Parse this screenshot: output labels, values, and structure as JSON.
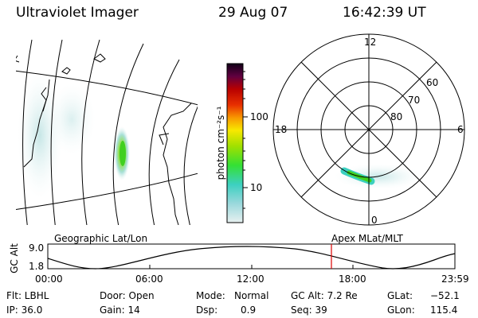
{
  "header": {
    "instrument": "Ultraviolet Imager",
    "date": "29 Aug 07",
    "time": "16:42:39 UT"
  },
  "colorbar": {
    "unit_label": "photon cm⁻²s⁻¹",
    "tick_labels": [
      "100",
      "10"
    ],
    "scale": "log"
  },
  "polar_plot": {
    "clock_labels": [
      "12",
      "18",
      "6",
      "0"
    ],
    "mlat_labels": [
      "60",
      "70",
      "80"
    ]
  },
  "timeline": {
    "left_label": "Geographic Lat/Lon",
    "right_label": "Apex MLat/MLT",
    "axis_name": "GC Alt",
    "y_ticks": [
      "9.0",
      "1.8"
    ],
    "x_ticks": [
      "00:00",
      "06:00",
      "12:00",
      "18:00",
      "23:59"
    ],
    "current_time_marker": "16:42:39",
    "marker_color": "#dd0000"
  },
  "info": {
    "row1": {
      "filter": "Flt: LBHL",
      "door": "Door: Open",
      "mode_label": "Mode:",
      "mode_value": "Normal",
      "gc_alt": "GC Alt: 7.2 Re",
      "glat_label": "GLat:",
      "glat_value": "−52.1"
    },
    "row2": {
      "ip": "IP: 36.0",
      "gain": "Gain: 14",
      "dsp_label": "Dsp:",
      "dsp_value": "0.9",
      "seq": "Seq: 39",
      "glon_label": "GLon:",
      "glon_value": "115.4"
    }
  },
  "colors": {
    "colorbar_stops": [
      "#d8ecec",
      "#9ad8dc",
      "#3cd0c0",
      "#34e034",
      "#a0e000",
      "#f8e800",
      "#f89800",
      "#e83000",
      "#b80000",
      "#600040",
      "#100018"
    ]
  }
}
